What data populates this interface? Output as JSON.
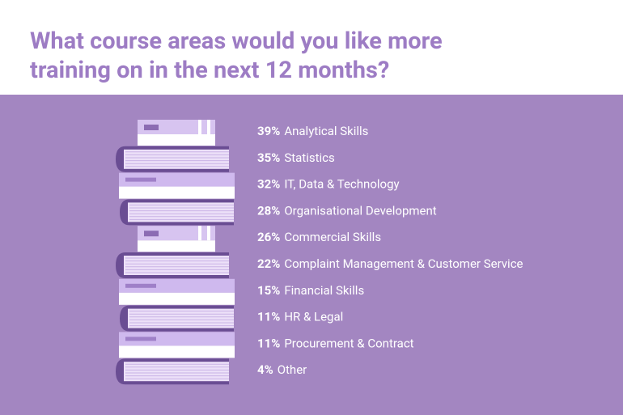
{
  "title": [
    "What course areas would you like more",
    "training on in the next 12 months?"
  ],
  "items": [
    {
      "percent": "39%",
      "label": "Analytical Skills"
    },
    {
      "percent": "35%",
      "label": "Statistics"
    },
    {
      "percent": "32%",
      "label": "IT, Data & Technology"
    },
    {
      "percent": "28%",
      "label": "Organisational Development"
    },
    {
      "percent": "26%",
      "label": "Commercial Skills"
    },
    {
      "percent": "22%",
      "label": "Complaint Management & Customer Service"
    },
    {
      "percent": "15%",
      "label": "Financial Skills"
    },
    {
      "percent": "11%",
      "label": "HR & Legal"
    },
    {
      "percent": "11%",
      "label": "Procurement & Contract"
    },
    {
      "percent": "4%",
      "label": "Other"
    }
  ]
}
